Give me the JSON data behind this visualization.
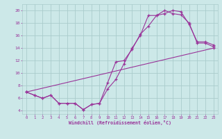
{
  "xlabel": "Windchill (Refroidissement éolien,°C)",
  "bg_color": "#cce8e8",
  "grid_color": "#aacccc",
  "line_color": "#993399",
  "xlim": [
    -0.5,
    23.5
  ],
  "ylim": [
    3.5,
    21.0
  ],
  "xticks": [
    0,
    1,
    2,
    3,
    4,
    5,
    6,
    7,
    8,
    9,
    10,
    11,
    12,
    13,
    14,
    15,
    16,
    17,
    18,
    19,
    20,
    21,
    22,
    23
  ],
  "yticks": [
    4,
    6,
    8,
    10,
    12,
    14,
    16,
    18,
    20
  ],
  "line1_x": [
    0,
    1,
    2,
    3,
    4,
    5,
    6,
    7,
    8,
    9,
    10,
    11,
    12,
    13,
    14,
    15,
    16,
    17,
    18,
    19,
    20,
    21,
    22,
    23
  ],
  "line1_y": [
    7.0,
    6.5,
    6.0,
    6.5,
    5.2,
    5.2,
    5.2,
    4.2,
    5.0,
    5.2,
    8.5,
    11.8,
    12.0,
    13.8,
    16.2,
    17.5,
    19.2,
    19.5,
    20.0,
    19.8,
    17.8,
    15.0,
    15.0,
    14.5
  ],
  "line2_x": [
    0,
    1,
    2,
    3,
    4,
    5,
    6,
    7,
    8,
    9,
    10,
    11,
    12,
    13,
    14,
    15,
    16,
    17,
    18,
    19,
    20,
    21,
    22,
    23
  ],
  "line2_y": [
    7.0,
    6.5,
    6.0,
    6.5,
    5.2,
    5.2,
    5.2,
    4.2,
    5.0,
    5.2,
    7.5,
    9.0,
    11.5,
    14.0,
    16.0,
    19.2,
    19.2,
    20.0,
    19.5,
    19.3,
    18.0,
    14.8,
    14.8,
    14.2
  ],
  "line3_x": [
    0,
    23
  ],
  "line3_y": [
    7.0,
    14.0
  ]
}
